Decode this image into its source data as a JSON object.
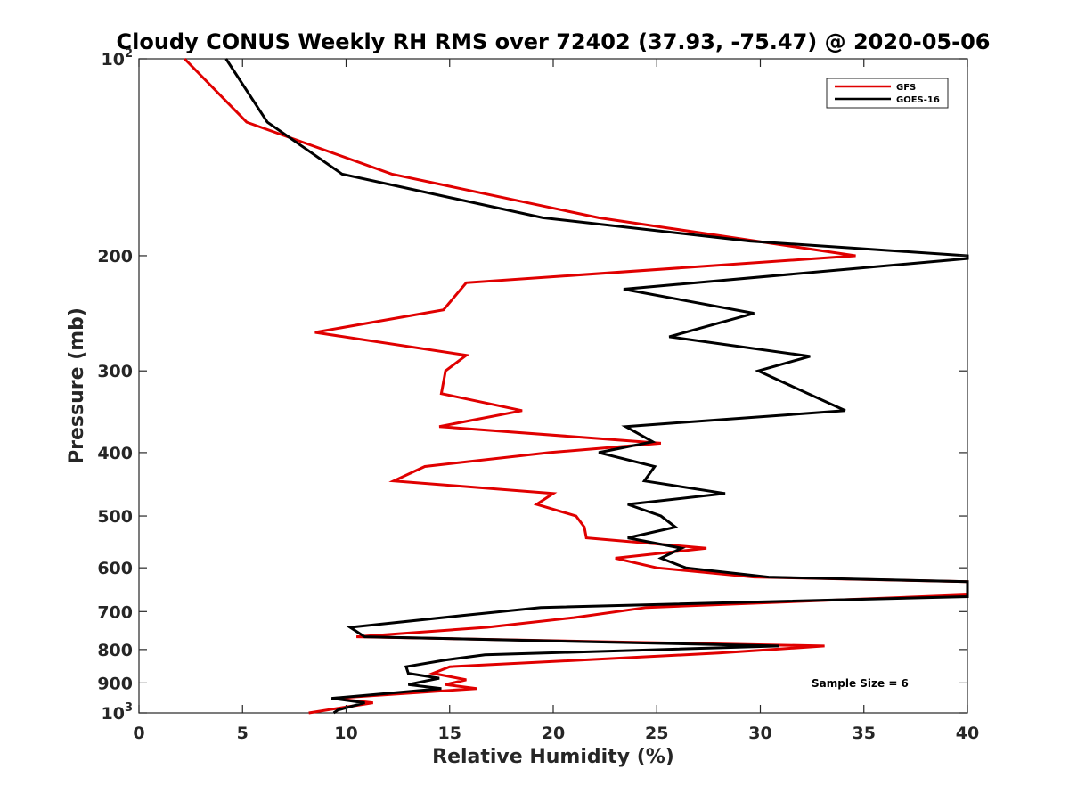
{
  "chart_data": {
    "type": "line",
    "title": "Cloudy CONUS Weekly RH RMS over 72402 (37.93, -75.47) @ 2020-05-06",
    "xlabel": "Relative Humidity (%)",
    "ylabel": "Pressure (mb)",
    "xlim": [
      0,
      40
    ],
    "ylim": [
      100,
      1000
    ],
    "y_scale": "log",
    "y_reversed": true,
    "x_ticks": [
      "0",
      "5",
      "10",
      "15",
      "20",
      "25",
      "30",
      "35",
      "40"
    ],
    "y_ticks": [
      {
        "value": 100,
        "base": "10",
        "exp": "2"
      },
      {
        "value": 200,
        "label": "200"
      },
      {
        "value": 300,
        "label": "300"
      },
      {
        "value": 400,
        "label": "400"
      },
      {
        "value": 500,
        "label": "500"
      },
      {
        "value": 600,
        "label": "600"
      },
      {
        "value": 700,
        "label": "700"
      },
      {
        "value": 800,
        "label": "800"
      },
      {
        "value": 900,
        "label": "900"
      },
      {
        "value": 1000,
        "base": "10",
        "exp": "3"
      }
    ],
    "grid": false,
    "legend_position": "top-right",
    "annotation": "Sample Size = 6",
    "series": [
      {
        "name": "GFS",
        "color": "#e00000",
        "points": [
          [
            2.2,
            100
          ],
          [
            5.2,
            125
          ],
          [
            12.2,
            150
          ],
          [
            22.2,
            175
          ],
          [
            34.6,
            200
          ],
          [
            15.8,
            220
          ],
          [
            14.7,
            242
          ],
          [
            8.5,
            262
          ],
          [
            15.8,
            284
          ],
          [
            14.8,
            300
          ],
          [
            14.6,
            325
          ],
          [
            18.5,
            345
          ],
          [
            14.5,
            365
          ],
          [
            25.2,
            387
          ],
          [
            19.8,
            400
          ],
          [
            13.8,
            420
          ],
          [
            12.3,
            442
          ],
          [
            20.0,
            462
          ],
          [
            19.2,
            480
          ],
          [
            21.1,
            500
          ],
          [
            21.5,
            520
          ],
          [
            21.6,
            540
          ],
          [
            27.4,
            560
          ],
          [
            23.0,
            580
          ],
          [
            25.0,
            600
          ],
          [
            29.7,
            620
          ],
          [
            40.0,
            630
          ],
          [
            40.0,
            660
          ],
          [
            24.5,
            690
          ],
          [
            21.0,
            715
          ],
          [
            16.8,
            740
          ],
          [
            10.5,
            765
          ],
          [
            33.1,
            790
          ],
          [
            28.0,
            810
          ],
          [
            15.0,
            850
          ],
          [
            14.2,
            870
          ],
          [
            15.8,
            890
          ],
          [
            14.8,
            905
          ],
          [
            16.3,
            918
          ],
          [
            9.4,
            950
          ],
          [
            11.3,
            965
          ],
          [
            8.2,
            1000
          ]
        ]
      },
      {
        "name": "GOES-16",
        "color": "#000000",
        "points": [
          [
            4.2,
            100
          ],
          [
            6.2,
            125
          ],
          [
            9.8,
            150
          ],
          [
            19.5,
            175
          ],
          [
            29.5,
            190
          ],
          [
            40.0,
            200
          ],
          [
            40.0,
            202
          ],
          [
            23.4,
            225
          ],
          [
            29.7,
            245
          ],
          [
            25.6,
            266
          ],
          [
            32.4,
            285
          ],
          [
            29.9,
            300
          ],
          [
            34.1,
            345
          ],
          [
            23.5,
            365
          ],
          [
            24.8,
            385
          ],
          [
            22.2,
            400
          ],
          [
            24.9,
            420
          ],
          [
            24.4,
            442
          ],
          [
            28.3,
            462
          ],
          [
            23.6,
            480
          ],
          [
            25.2,
            500
          ],
          [
            25.9,
            520
          ],
          [
            23.6,
            540
          ],
          [
            26.2,
            560
          ],
          [
            25.2,
            580
          ],
          [
            26.4,
            600
          ],
          [
            30.4,
            620
          ],
          [
            40.0,
            630
          ],
          [
            40.0,
            664
          ],
          [
            19.4,
            690
          ],
          [
            15.6,
            710
          ],
          [
            10.2,
            740
          ],
          [
            10.9,
            765
          ],
          [
            30.9,
            790
          ],
          [
            16.7,
            815
          ],
          [
            14.8,
            830
          ],
          [
            12.9,
            850
          ],
          [
            13.0,
            870
          ],
          [
            14.5,
            885
          ],
          [
            13.0,
            905
          ],
          [
            14.6,
            918
          ],
          [
            9.3,
            950
          ],
          [
            10.9,
            965
          ],
          [
            9.6,
            990
          ],
          [
            9.4,
            1000
          ]
        ]
      }
    ]
  }
}
